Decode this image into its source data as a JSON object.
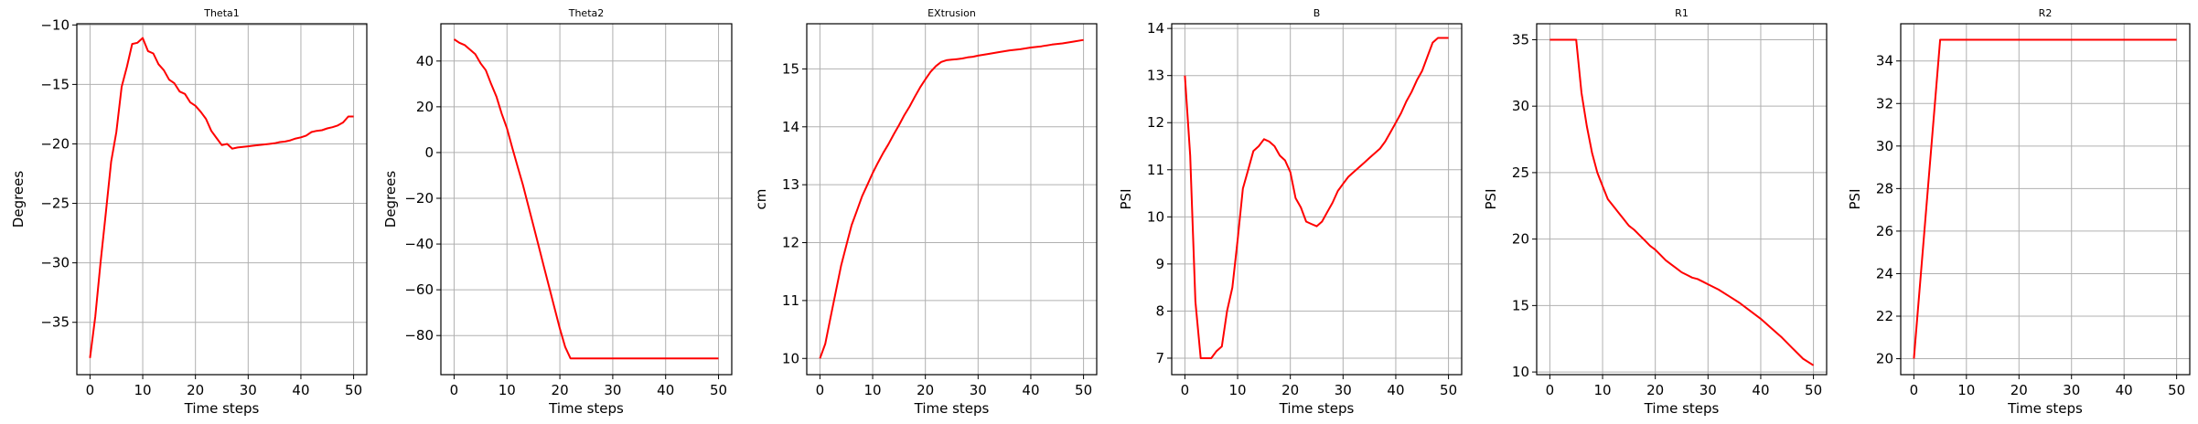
{
  "chart_data": [
    {
      "type": "line",
      "title": "Theta1",
      "xlabel": "Time steps",
      "ylabel": "Degrees",
      "xlim": [
        -2.5,
        52.5
      ],
      "ylim": [
        -39.4,
        -9.9
      ],
      "xticks": [
        0,
        10,
        20,
        30,
        40,
        50
      ],
      "yticks": [
        -35,
        -30,
        -25,
        -20,
        -15,
        -10
      ],
      "grid": true,
      "color": "#ff0000",
      "series": [
        {
          "x": [
            0,
            1,
            2,
            3,
            4,
            5,
            6,
            7,
            8,
            9,
            10,
            11,
            12,
            13,
            14,
            15,
            16,
            17,
            18,
            19,
            20,
            21,
            22,
            23,
            24,
            25,
            26,
            27,
            28,
            29,
            30,
            31,
            32,
            33,
            34,
            35,
            36,
            37,
            38,
            39,
            40,
            41,
            42,
            43,
            44,
            45,
            46,
            47,
            48,
            49,
            50
          ],
          "values": [
            -38,
            -34.5,
            -30,
            -25.8,
            -21.5,
            -19,
            -15.2,
            -13.5,
            -11.6,
            -11.5,
            -11.1,
            -12.2,
            -12.4,
            -13.3,
            -13.8,
            -14.6,
            -14.9,
            -15.6,
            -15.8,
            -16.5,
            -16.8,
            -17.3,
            -17.9,
            -18.9,
            -19.5,
            -20.1,
            -20.0,
            -20.4,
            -20.3,
            -20.25,
            -20.2,
            -20.15,
            -20.1,
            -20.05,
            -20.0,
            -19.95,
            -19.85,
            -19.8,
            -19.7,
            -19.55,
            -19.45,
            -19.3,
            -19.0,
            -18.9,
            -18.85,
            -18.7,
            -18.6,
            -18.45,
            -18.2,
            -17.7,
            -17.7
          ]
        }
      ]
    },
    {
      "type": "line",
      "title": "Theta2",
      "xlabel": "Time steps",
      "ylabel": "Degrees",
      "xlim": [
        -2.5,
        52.5
      ],
      "ylim": [
        -97.1,
        56.3
      ],
      "xticks": [
        0,
        10,
        20,
        30,
        40,
        50
      ],
      "yticks": [
        -80,
        -60,
        -40,
        -20,
        0,
        20,
        40
      ],
      "grid": true,
      "color": "#ff0000",
      "series": [
        {
          "x": [
            0,
            1,
            2,
            3,
            4,
            5,
            6,
            7,
            8,
            9,
            10,
            11,
            12,
            13,
            14,
            15,
            16,
            17,
            18,
            19,
            20,
            21,
            22,
            23,
            24,
            25,
            30,
            35,
            40,
            45,
            50
          ],
          "values": [
            49.5,
            48,
            47,
            45,
            43,
            39,
            36,
            30,
            24.5,
            17,
            10.5,
            2,
            -6,
            -14,
            -23,
            -32,
            -41,
            -50,
            -59,
            -68,
            -77,
            -85,
            -90,
            -90,
            -90,
            -90,
            -90,
            -90,
            -90,
            -90,
            -90
          ]
        }
      ]
    },
    {
      "type": "line",
      "title": "EXtrusion",
      "xlabel": "Time steps",
      "ylabel": "cm",
      "xlim": [
        -2.5,
        52.5
      ],
      "ylim": [
        9.72,
        15.78
      ],
      "xticks": [
        0,
        10,
        20,
        30,
        40,
        50
      ],
      "yticks": [
        10,
        11,
        12,
        13,
        14,
        15
      ],
      "grid": true,
      "color": "#ff0000",
      "series": [
        {
          "x": [
            0,
            1,
            2,
            3,
            4,
            5,
            6,
            7,
            8,
            9,
            10,
            11,
            12,
            13,
            14,
            15,
            16,
            17,
            18,
            19,
            20,
            21,
            22,
            23,
            24,
            25,
            26,
            27,
            28,
            29,
            30,
            32,
            34,
            36,
            38,
            40,
            42,
            44,
            46,
            48,
            50
          ],
          "values": [
            10.0,
            10.25,
            10.7,
            11.15,
            11.6,
            11.95,
            12.3,
            12.55,
            12.8,
            13.0,
            13.2,
            13.38,
            13.55,
            13.7,
            13.87,
            14.03,
            14.2,
            14.35,
            14.52,
            14.68,
            14.82,
            14.95,
            15.05,
            15.12,
            15.15,
            15.16,
            15.17,
            15.18,
            15.2,
            15.21,
            15.23,
            15.26,
            15.29,
            15.32,
            15.34,
            15.37,
            15.39,
            15.42,
            15.44,
            15.47,
            15.5
          ]
        }
      ]
    },
    {
      "type": "line",
      "title": "B",
      "xlabel": "Time steps",
      "ylabel": "PSI",
      "xlim": [
        -2.5,
        52.5
      ],
      "ylim": [
        6.65,
        14.1
      ],
      "xticks": [
        0,
        10,
        20,
        30,
        40,
        50
      ],
      "yticks": [
        7,
        8,
        9,
        10,
        11,
        12,
        13,
        14
      ],
      "grid": true,
      "color": "#ff0000",
      "series": [
        {
          "x": [
            0,
            1,
            2,
            3,
            4,
            5,
            6,
            7,
            8,
            9,
            10,
            11,
            12,
            13,
            14,
            15,
            16,
            17,
            18,
            19,
            20,
            21,
            22,
            23,
            24,
            25,
            26,
            27,
            28,
            29,
            30,
            31,
            32,
            33,
            34,
            35,
            36,
            37,
            38,
            39,
            40,
            41,
            42,
            43,
            44,
            45,
            46,
            47,
            48,
            49,
            50
          ],
          "values": [
            13.0,
            11.3,
            8.2,
            7.0,
            7.0,
            7.0,
            7.15,
            7.25,
            8.0,
            8.5,
            9.5,
            10.6,
            11.0,
            11.4,
            11.5,
            11.65,
            11.6,
            11.5,
            11.3,
            11.2,
            10.95,
            10.4,
            10.2,
            9.9,
            9.85,
            9.8,
            9.9,
            10.1,
            10.3,
            10.55,
            10.7,
            10.85,
            10.95,
            11.05,
            11.15,
            11.25,
            11.35,
            11.45,
            11.6,
            11.8,
            12.0,
            12.2,
            12.45,
            12.65,
            12.9,
            13.1,
            13.4,
            13.7,
            13.8,
            13.8,
            13.8
          ]
        }
      ]
    },
    {
      "type": "line",
      "title": "R1",
      "xlabel": "Time steps",
      "ylabel": "PSI",
      "xlim": [
        -2.5,
        52.5
      ],
      "ylim": [
        9.8,
        36.2
      ],
      "xticks": [
        0,
        10,
        20,
        30,
        40,
        50
      ],
      "yticks": [
        10,
        15,
        20,
        25,
        30,
        35
      ],
      "grid": true,
      "color": "#ff0000",
      "series": [
        {
          "x": [
            0,
            1,
            2,
            3,
            4,
            5,
            6,
            7,
            8,
            9,
            10,
            11,
            12,
            13,
            14,
            15,
            16,
            17,
            18,
            19,
            20,
            21,
            22,
            23,
            24,
            25,
            26,
            27,
            28,
            29,
            30,
            32,
            34,
            36,
            38,
            40,
            42,
            44,
            46,
            48,
            50
          ],
          "values": [
            35,
            35,
            35,
            35,
            35,
            35,
            31,
            28.5,
            26.5,
            25,
            24,
            23,
            22.5,
            22,
            21.5,
            21,
            20.7,
            20.3,
            19.9,
            19.5,
            19.2,
            18.8,
            18.4,
            18.1,
            17.8,
            17.5,
            17.3,
            17.1,
            17.0,
            16.8,
            16.6,
            16.2,
            15.7,
            15.2,
            14.6,
            14.0,
            13.3,
            12.6,
            11.8,
            11.0,
            10.5
          ]
        }
      ]
    },
    {
      "type": "line",
      "title": "R2",
      "xlabel": "Time steps",
      "ylabel": "PSI",
      "xlim": [
        -2.5,
        52.5
      ],
      "ylim": [
        19.25,
        35.75
      ],
      "xticks": [
        0,
        10,
        20,
        30,
        40,
        50
      ],
      "yticks": [
        20,
        22,
        24,
        26,
        28,
        30,
        32,
        34
      ],
      "grid": true,
      "color": "#ff0000",
      "series": [
        {
          "x": [
            0,
            5,
            10,
            20,
            30,
            40,
            50
          ],
          "values": [
            20,
            35,
            35,
            35,
            35,
            35,
            35
          ]
        }
      ]
    }
  ]
}
